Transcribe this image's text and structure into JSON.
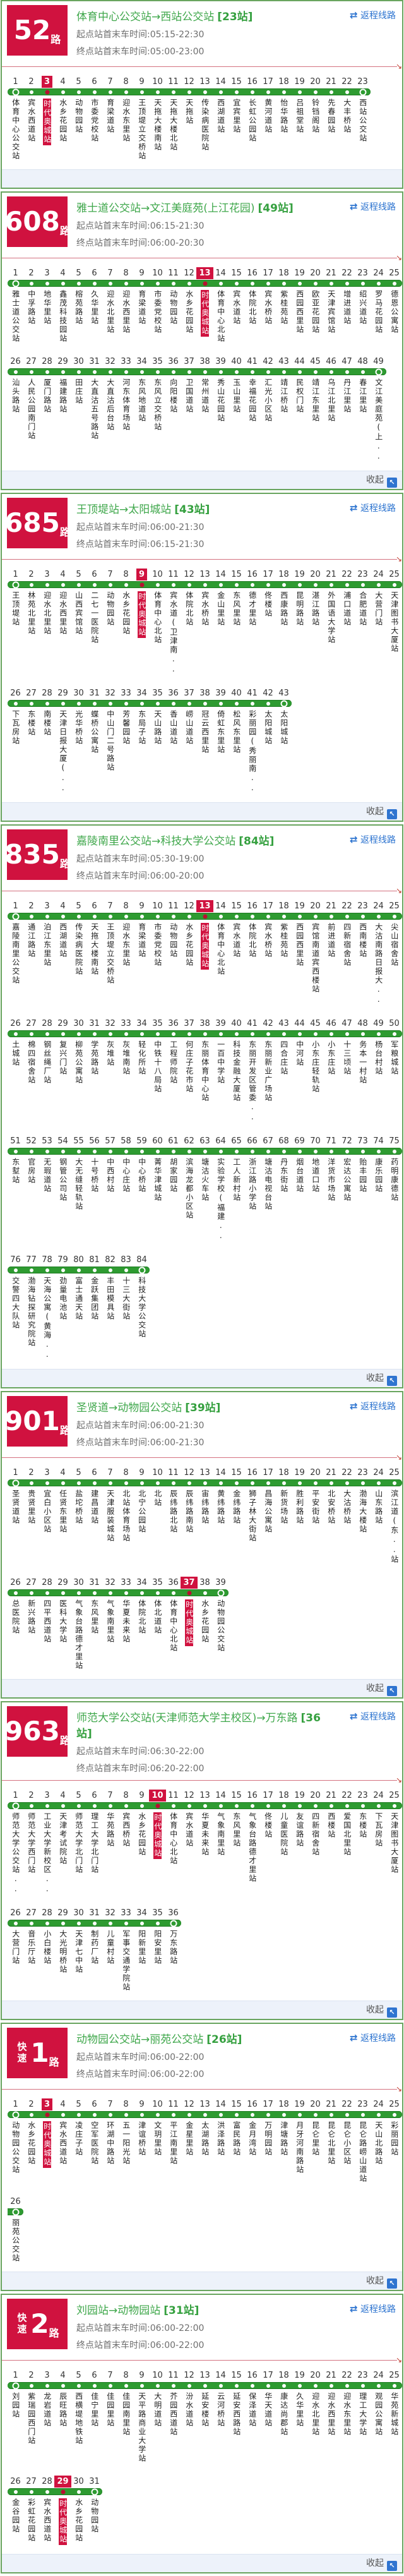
{
  "labels": {
    "return_link": "返程线路",
    "collapse": "收起"
  },
  "icons": {
    "swap": "⇄",
    "collapse": "↖",
    "rule_arrow": "↘"
  },
  "colors": {
    "accent_red": "#d0123f",
    "line_green": "#2e9b31",
    "card_border_green": "#69a55f",
    "title_green": "#3fa74b",
    "link_blue": "#2a72cf",
    "footer_bg": "#edf2fa"
  },
  "routes": [
    {
      "badge": {
        "prefix": "",
        "number": "52",
        "suffix": "路"
      },
      "title": "体育中心公交站→西站公交站",
      "station_count": "[23站]",
      "start_time": "起点站首末车时间:05:15-22:30",
      "end_time": "终点站首末车时间:05:00-23:00",
      "highlight": 3,
      "collapse_visible": false,
      "stations": [
        "体育中心公交站",
        "宾水西道站",
        "时代奥城站",
        "水乡花园站",
        "动物园站",
        "市委党校站",
        "育梁道站",
        "迎水东里站",
        "王顶堤立交桥站",
        "天拖大楼南站",
        "天拖大楼北站",
        "天拖站",
        "传染病医院站",
        "西湖道站",
        "宜宾里站",
        "长虹公园站",
        "黄河道站",
        "怡华路站",
        "吕祖堂站",
        "铃铛阁站",
        "先春园站",
        "大丰桥站",
        "西站公交站"
      ]
    },
    {
      "badge": {
        "prefix": "",
        "number": "608",
        "suffix": "路"
      },
      "title": "雅士道公交站→文江美庭苑(上江花园)",
      "station_count": "[49站]",
      "start_time": "起点站首末车时间:06:15-21:30",
      "end_time": "终点站首末车时间:06:00-20:30",
      "highlight": 13,
      "collapse_visible": true,
      "stations": [
        "雅士道公交站",
        "中孚路站",
        "地华里站",
        "鑫茂科技园站",
        "榕苑路站",
        "久华里站",
        "迎水北里站",
        "迎水西里站",
        "育梁道站",
        "市委党校站",
        "动物园站",
        "水乡花园站",
        "时代奥城站",
        "体育中心北站",
        "宾水道站",
        "体院北站",
        "宾水桥站",
        "紫桂苑站",
        "西园西里站",
        "欧亚花园站",
        "天津宾馆站",
        "增进道站",
        "绍兴道站",
        "罗马花园站",
        "德恩公寓站",
        "汕头路站",
        "人民公园南门站",
        "厦门路站",
        "福建路站",
        "田庄站",
        "大直沽五号路站",
        "大直沽后台站",
        "河东体育场站",
        "东风地道站",
        "东风立交桥站",
        "向阳楼站",
        "卫国道站",
        "常州道站",
        "秀山花园站",
        "玉山里站",
        "幸福花园站",
        "汇光小区站",
        "靖江桥站",
        "民权门站",
        "靖江东里站",
        "乌江北里站",
        "丹江里站",
        "春江里站",
        "文江美庭苑(上.."
      ]
    },
    {
      "badge": {
        "prefix": "",
        "number": "685",
        "suffix": "路"
      },
      "title": "王顶堤站→太阳城站",
      "station_count": "[43站]",
      "start_time": "起点站首末车时间:06:00-21:30",
      "end_time": "终点站首末车时间:06:15-21:30",
      "highlight": 9,
      "collapse_visible": true,
      "stations": [
        "王顶堤站",
        "林苑北里站",
        "迎水北里站",
        "迎水西里站",
        "山西宾馆站",
        "二七一医院站",
        "动物园站",
        "水乡花园站",
        "时代奥城站",
        "体育中心北站",
        "宾水道(卫津南..",
        "体院北站",
        "宾水桥站",
        "金山里站",
        "东风里站",
        "德才里站",
        "佟楼站",
        "西康路站",
        "昆明路站",
        "湛江路站",
        "外国语大学站",
        "浦口道站",
        "合肥道站",
        "大营门站",
        "天津图书大厦站",
        "下瓦房站",
        "东楼站",
        "南楼站",
        "天津日报大厦(..",
        "光华桥站",
        "蝶桥公寓站",
        "中山门二号路站",
        "芳馨园站",
        "东局子站",
        "天山路站",
        "香山道站",
        "崂山道站",
        "冠云西里站",
        "倚虹东里站",
        "松风东里站",
        "彩丽园(秀丽南..",
        "太阳城站",
        "太阳城站"
      ]
    },
    {
      "badge": {
        "prefix": "",
        "number": "835",
        "suffix": "路"
      },
      "title": "嘉陵南里公交站→科技大学公交站",
      "station_count": "[84站]",
      "start_time": "起点站首末车时间:05:30-19:00",
      "end_time": "终点站首末车时间:06:00-20:00",
      "highlight": 13,
      "collapse_visible": true,
      "stations": [
        "嘉陵南里公交站",
        "通江路站",
        "泊江东里站",
        "西湖道站",
        "传染病医院站",
        "天拖大楼南站",
        "王顶堤立交桥站",
        "迎水东里站",
        "育梁道站",
        "市委党校站",
        "动物园站",
        "水乡花园站",
        "时代奥城站",
        "体育中心北站",
        "宾水道站",
        "体院北站",
        "宾水桥站",
        "紫桂苑站",
        "西园西里站",
        "宾馆南道宾西楼站",
        "前进道站",
        "四新宿舍站",
        "西南楼站",
        "大沽南路日报大..",
        "尖山宿舍站",
        "土城站",
        "棉四宿舍站",
        "钢丝绳厂站",
        "复兴门站",
        "柳苑公寓站",
        "学苑路站",
        "灰堆站",
        "灰堆南站",
        "轻化所站",
        "中铁十八局站",
        "工程师院站",
        "何庄子花市站",
        "东丽体育中心站",
        "一百中学站",
        "科技金融大厦站",
        "东丽开发区管委..",
        "东丽新业广场站",
        "四合庄站",
        "中河站",
        "小东庄轻轨站",
        "小东庄站",
        "十三顷站",
        "务本一村站",
        "杨台村站",
        "军粮城站",
        "东堼站",
        "官房站",
        "无瑕道站",
        "钢管公司站",
        "大无缝轻轨站",
        "十号桥站",
        "中西村站",
        "中心庄站",
        "中心桥站",
        "菁华津城站",
        "胡家园站",
        "滨海龙都小区站",
        "塘沽火车站",
        "实验学校(福建..",
        "工人新村站",
        "浙江路小学站",
        "塘沽电视台站",
        "丹东街站",
        "烟台道站",
        "地道口站",
        "洋货市场站",
        "宏达公寓站",
        "贻丰园站",
        "康乐园站",
        "药明康德站",
        "交警四大队站",
        "渤海钻探研究院站",
        "天海公寓(黄海..",
        "劲量电池站",
        "富士通天站",
        "金跃集团站",
        "丰田模具站",
        "十三大街站",
        "科技大学公交站"
      ]
    },
    {
      "badge": {
        "prefix": "",
        "number": "901",
        "suffix": "路"
      },
      "title": "圣贤道→动物园公交站",
      "station_count": "[39站]",
      "start_time": "起点站首末车时间:06:00-21:30",
      "end_time": "终点站首末车时间:06:00-21:30",
      "highlight": 37,
      "collapse_visible": true,
      "stations": [
        "圣贤道站",
        "贵贤里站",
        "宜白小区站",
        "任贤东里站",
        "盐坨桥站",
        "建昌道站",
        "天津服装城站",
        "北站体育场站",
        "北宁公园站",
        "北站",
        "辰纬路北站",
        "辰纬路南站",
        "宙纬路站",
        "黄纬路站",
        "金纬路站",
        "狮子林大街站",
        "昌海公寓站",
        "新货场站",
        "胜利路站",
        "平安街站",
        "北安桥站",
        "大沽桥站",
        "渤海大楼站",
        "山东路站",
        "滨江道(东..站",
        "总医院站",
        "新兴路站",
        "四平西道站",
        "医科大学站",
        "气象台路德才里站",
        "东风里站",
        "气象南里站",
        "华夏未来站",
        "体院北站",
        "体北道站",
        "体育中心北站",
        "时代奥城站",
        "水乡花园站",
        "动物园公交站"
      ]
    },
    {
      "badge": {
        "prefix": "",
        "number": "963",
        "suffix": "路"
      },
      "title": "师范大学公交站(天津师范大学主校区)→万东路",
      "station_count": "[36站]",
      "start_time": "起点站首末车时间:06:30-22:00",
      "end_time": "终点站首末车时间:06:20-22:00",
      "highlight": 10,
      "collapse_visible": true,
      "stations": [
        "师范大学公交站..",
        "师范大学西门站",
        "工业大学新校区..",
        "天津考试院站",
        "师范大学北门站",
        "理工大学北门站",
        "华苑路站",
        "宾西桥站",
        "水乡花园站",
        "时代奥城站",
        "体育中心北站",
        "宾水道站",
        "华夏未来站",
        "气象南里站",
        "东风里站",
        "气象台路德才里站",
        "佟楼站",
        "儿童医院站",
        "友谊路站",
        "四新宿舍站",
        "西楼站",
        "爱国北里站",
        "东楼站",
        "下瓦房站",
        "天津图书大厦站",
        "大营门站",
        "音乐厅站",
        "小白楼站",
        "大光明桥站",
        "天津七中站",
        "制药厂站",
        "儿童村站",
        "军事交通学院站",
        "阳新里站",
        "阳安里站",
        "万东路站"
      ]
    },
    {
      "badge": {
        "prefix": "快速",
        "number": "1",
        "suffix": "路"
      },
      "title": "动物园公交站→丽苑公交站",
      "station_count": "[26站]",
      "start_time": "起点站首末车时间:06:00-22:00",
      "end_time": "终点站首末车时间:06:00-22:00",
      "highlight": 3,
      "collapse_visible": true,
      "stations": [
        "动物园公交站",
        "水乡花园站",
        "时代奥城站",
        "宾水西道站",
        "凌庄子站",
        "空军医院站",
        "环湖中路站",
        "五一阳光站",
        "津谊桥站",
        "文玥里站",
        "平江南里站",
        "金星里站",
        "太湖路站",
        "洪泽路站",
        "富民路站",
        "金月湾站",
        "万明园站",
        "津塘路站",
        "月牙河南路站",
        "昆仑里站",
        "昆仑北里站",
        "昆仑小区站",
        "昆仑路崂山道站",
        "天山北路站",
        "彩丽园站",
        "丽苑公交站"
      ]
    },
    {
      "badge": {
        "prefix": "快速",
        "number": "2",
        "suffix": "路"
      },
      "title": "刘园站→动物园站",
      "station_count": "[31站]",
      "start_time": "起点站首末车时间:06:00-22:00",
      "end_time": "终点站首末车时间:06:00-22:00",
      "highlight": 29,
      "collapse_visible": true,
      "stations": [
        "刘园站",
        "紫瑞园西门站",
        "龙岩道站",
        "辰旺路站",
        "西横堤地铁站",
        "佳宁里站",
        "佳园里站",
        "佳园南里站",
        "天平路商业大学站",
        "大明道站",
        "芥园西道站",
        "汾水道站",
        "延安楼站",
        "云河桥站",
        "延安西路站",
        "保泽道站",
        "华天道站",
        "康达尚郡站",
        "久华里站",
        "迎水北里站",
        "迎水西里站",
        "迎水东里站",
        "理工大学站",
        "观园公寓站",
        "华苑新城站",
        "金谷园站",
        "彩虹花园站",
        "宾水西道站",
        "时代奥城站",
        "水乡花园站",
        "动物园站"
      ]
    }
  ]
}
